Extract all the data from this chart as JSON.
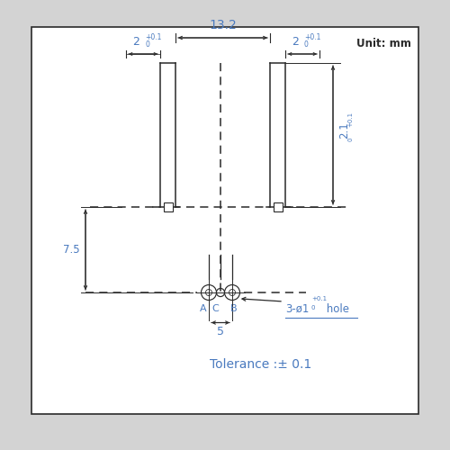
{
  "bg_color": "#d3d3d3",
  "box_color": "#ffffff",
  "line_color": "#2a2a2a",
  "dim_color": "#4a7abf",
  "unit_text": "Unit: mm",
  "tolerance_text": "Tolerance :± 0.1",
  "hole_label": "3-ø1",
  "hole_sup": "+0.1",
  "hole_sub": "0",
  "hole_suffix": " hole",
  "dim_132": "13.2",
  "dim_2left": "2",
  "dim_2left_sup": "+0.1",
  "dim_2left_sub": "0",
  "dim_2right": "2",
  "dim_2right_sup": "+0.1",
  "dim_2right_sub": "0",
  "dim_21": "2.1",
  "dim_21_sup": "+0.1",
  "dim_21_sub": "0",
  "dim_75": "7.5",
  "dim_5": "5",
  "labels_ACB": [
    "A",
    "C",
    "B"
  ],
  "figsize": [
    5.0,
    5.0
  ],
  "dpi": 100
}
